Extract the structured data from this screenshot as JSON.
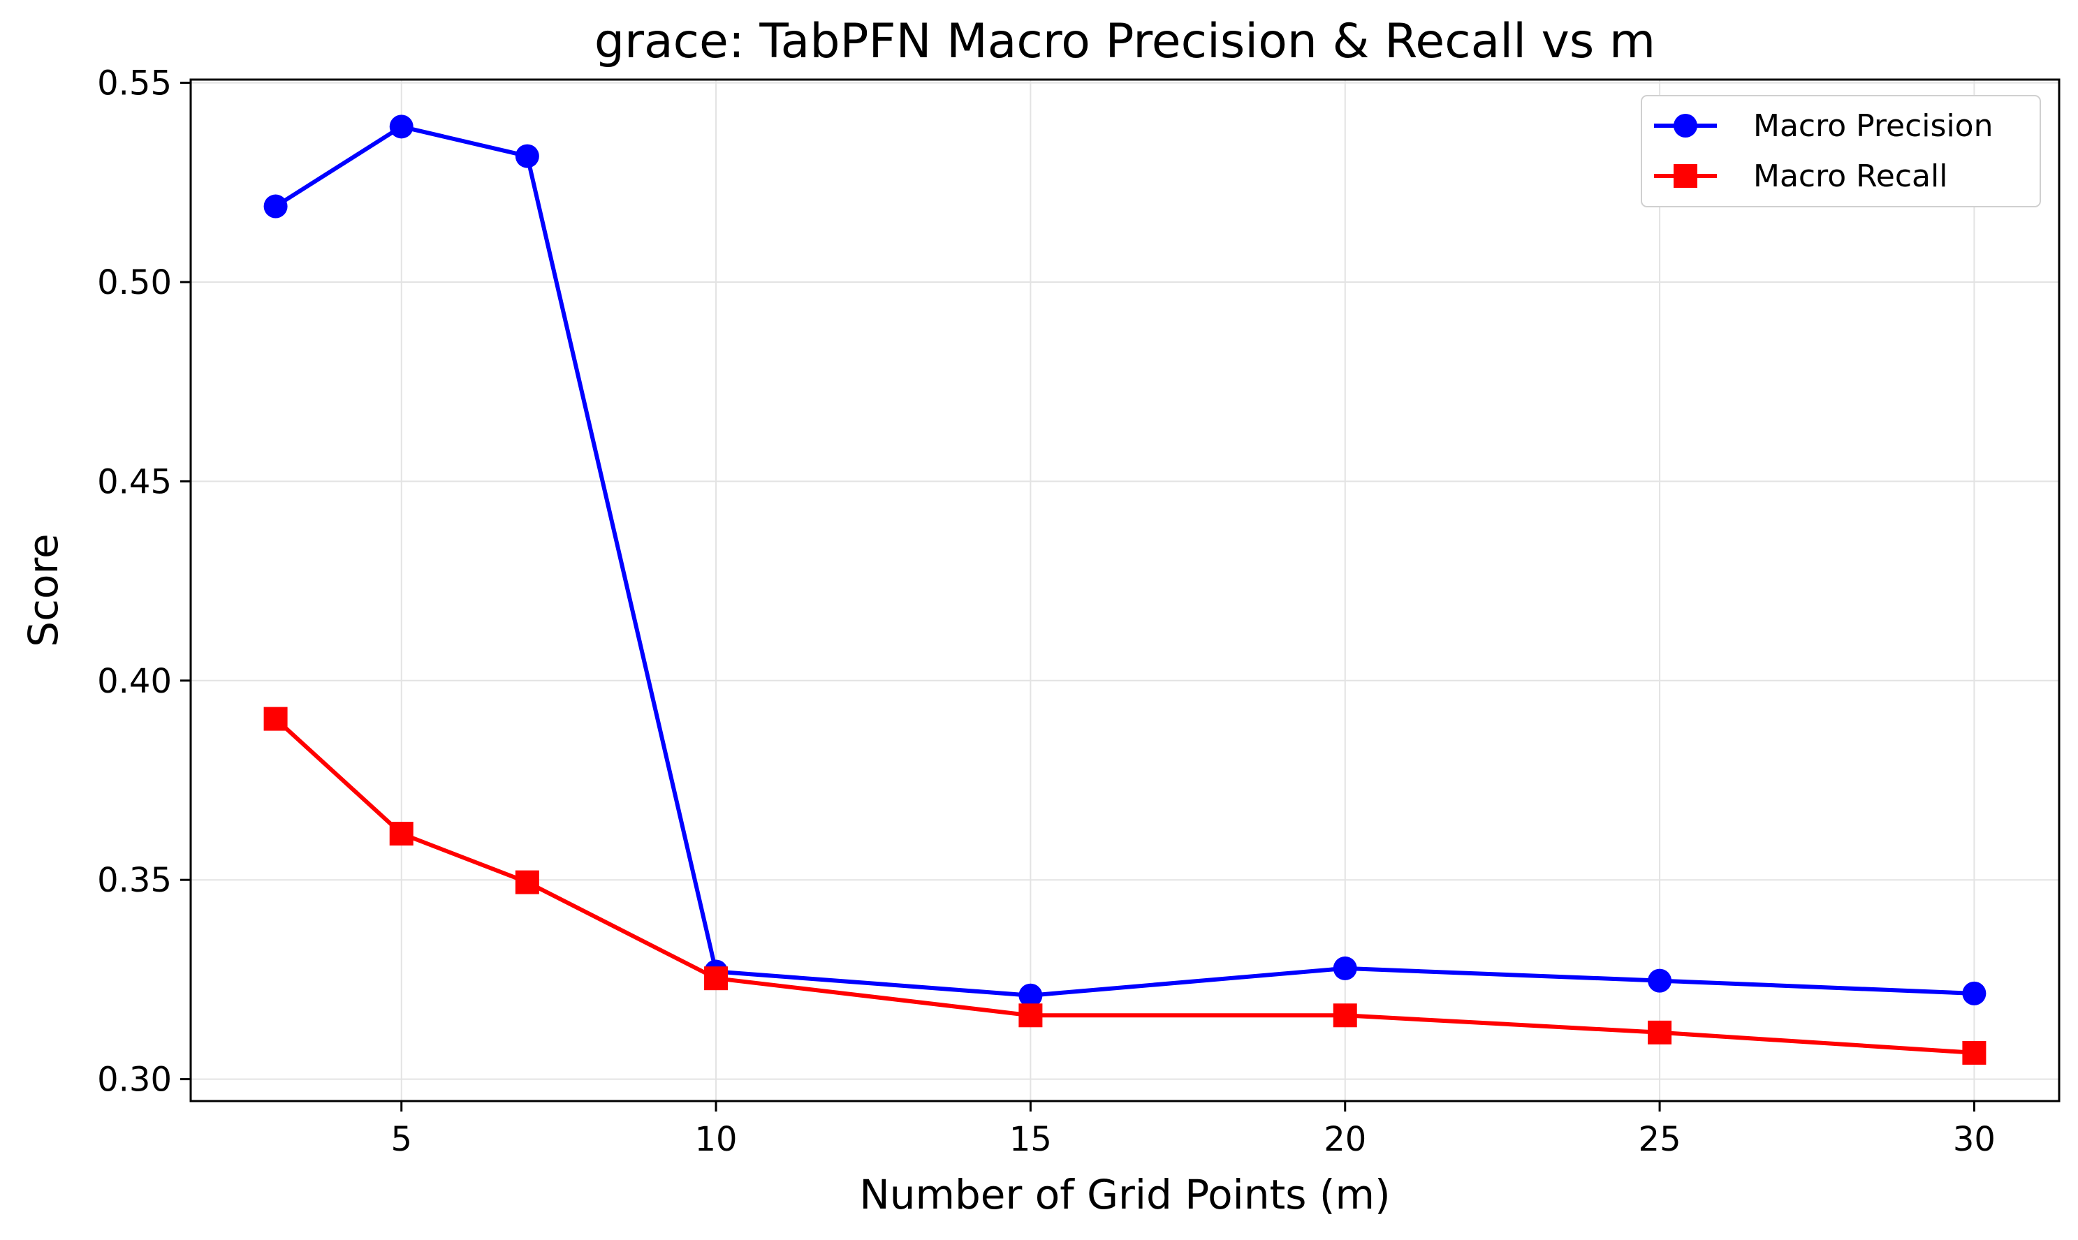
{
  "chart_data": {
    "type": "line",
    "title": "grace: TabPFN Macro Precision & Recall vs m",
    "xlabel": "Number of Grid Points (m)",
    "ylabel": "Score",
    "x": [
      3,
      5,
      7,
      10,
      15,
      20,
      25,
      30
    ],
    "xticks": [
      5,
      10,
      15,
      20,
      25,
      30
    ],
    "yticks": [
      0.3,
      0.35,
      0.4,
      0.45,
      0.5,
      0.55
    ],
    "xlim": [
      1.65,
      31.35
    ],
    "ylim": [
      0.2945,
      0.5508
    ],
    "grid": true,
    "legend_position": "top-right",
    "series": [
      {
        "name": "Macro Precision",
        "color": "#0000ff",
        "marker": "circle",
        "values": [
          0.519,
          0.539,
          0.5316,
          0.327,
          0.321,
          0.3278,
          0.3247,
          0.3215
        ]
      },
      {
        "name": "Macro Recall",
        "color": "#ff0000",
        "marker": "square",
        "values": [
          0.3904,
          0.3616,
          0.3494,
          0.3253,
          0.316,
          0.316,
          0.3117,
          0.3066
        ]
      }
    ]
  }
}
